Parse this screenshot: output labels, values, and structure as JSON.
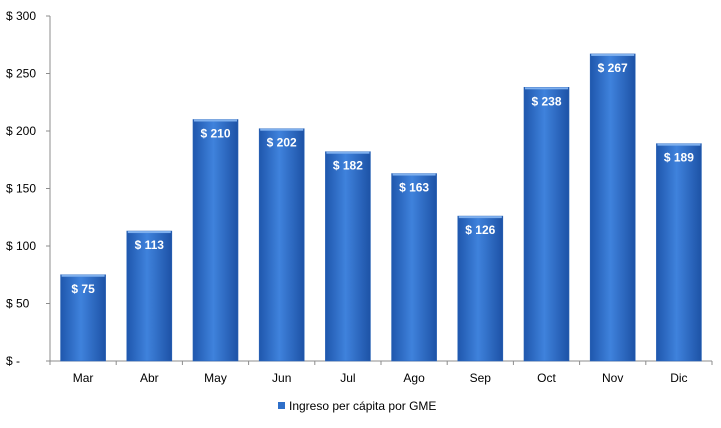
{
  "chart_data": {
    "type": "bar",
    "categories": [
      "Mar",
      "Abr",
      "May",
      "Jun",
      "Jul",
      "Ago",
      "Sep",
      "Oct",
      "Nov",
      "Dic"
    ],
    "series": [
      {
        "name": "Ingreso per cápita por GME",
        "values": [
          75,
          113,
          210,
          202,
          182,
          163,
          126,
          238,
          267,
          189
        ],
        "data_labels": [
          "$ 75",
          "$ 113",
          "$ 210",
          "$ 202",
          "$ 182",
          "$ 163",
          "$ 126",
          "$ 238",
          "$ 267",
          "$ 189"
        ],
        "color": "#2e6fc9"
      }
    ],
    "ylim": [
      0,
      300
    ],
    "yticks": [
      0,
      50,
      100,
      150,
      200,
      250,
      300
    ],
    "ytick_labels": [
      "$ -",
      "$ 50",
      "$ 100",
      "$ 150",
      "$ 200",
      "$ 250",
      "$ 300"
    ],
    "grid": false,
    "legend_position": "bottom"
  }
}
